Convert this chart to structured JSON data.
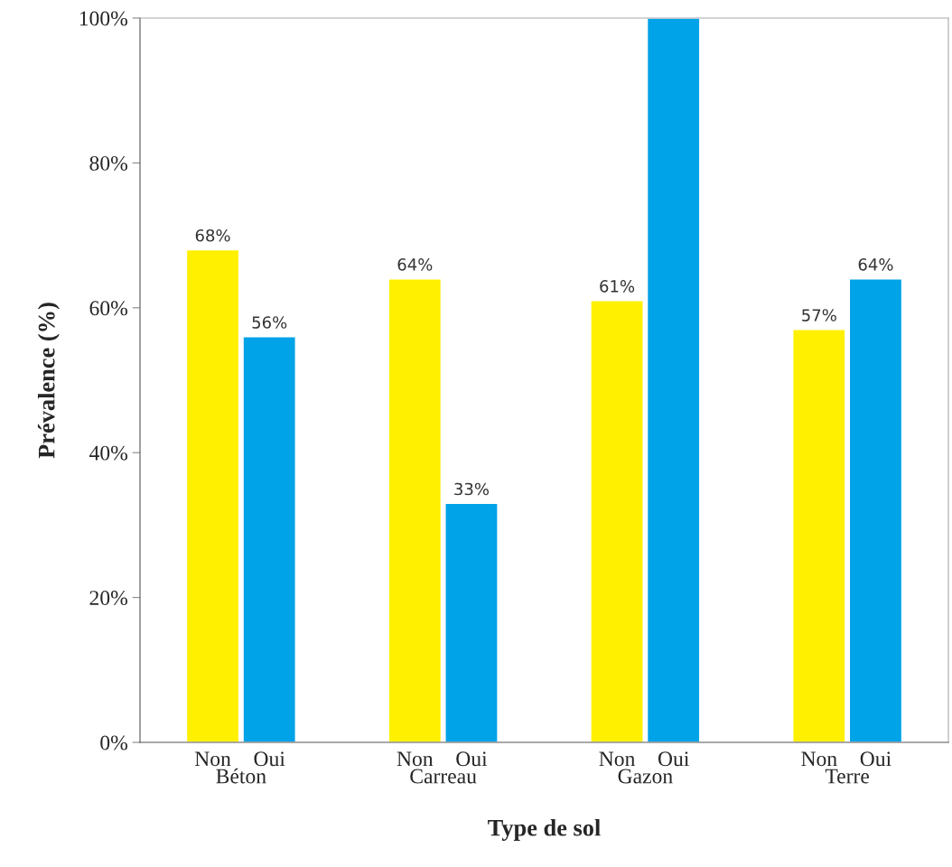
{
  "chart_data": {
    "type": "bar",
    "xlabel": "Type de sol",
    "ylabel": "Prévalence (%)",
    "categories": [
      "Béton",
      "Carreau",
      "Gazon",
      "Terre"
    ],
    "series": [
      {
        "name": "Non",
        "color": "#fff000",
        "values": [
          68,
          64,
          61,
          57
        ],
        "value_labels": [
          "68%",
          "64%",
          "61%",
          "57%"
        ]
      },
      {
        "name": "Oui",
        "color": "#00a2e8",
        "values": [
          56,
          33,
          100,
          64
        ],
        "value_labels": [
          "56%",
          "33%",
          null,
          "64%"
        ]
      }
    ],
    "ylim": [
      0,
      100
    ],
    "yticks": [
      {
        "value": 0,
        "label": "0%"
      },
      {
        "value": 20,
        "label": "20%"
      },
      {
        "value": 40,
        "label": "40%"
      },
      {
        "value": 60,
        "label": "60%"
      },
      {
        "value": 80,
        "label": "80%"
      },
      {
        "value": 100,
        "label": "100%"
      }
    ],
    "grid": false,
    "legend": false
  }
}
